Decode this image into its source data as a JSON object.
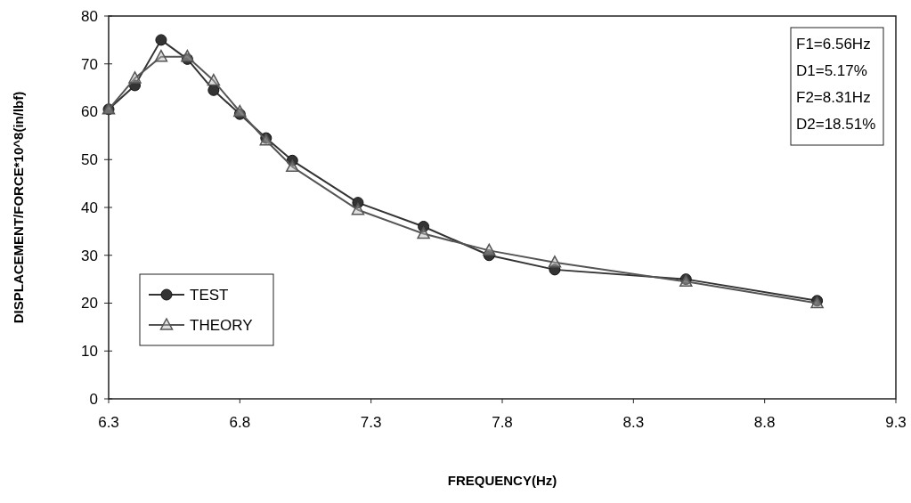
{
  "chart_data": {
    "type": "line",
    "xlabel": "FREQUENCY(Hz)",
    "ylabel": "DISPLACEMENT/FORCE*10^8(in/lbf)",
    "x": [
      6.3,
      6.4,
      6.5,
      6.6,
      6.7,
      6.8,
      6.9,
      7.0,
      7.25,
      7.5,
      7.75,
      8.0,
      8.5,
      9.0
    ],
    "series": [
      {
        "name": "TEST",
        "color": "#333333",
        "marker": "circle",
        "values": [
          60.5,
          65.5,
          75,
          71,
          64.5,
          59.5,
          54.5,
          49.8,
          41,
          36,
          30,
          27,
          25,
          20.5
        ]
      },
      {
        "name": "THEORY",
        "color": "#555555",
        "marker": "triangle",
        "values": [
          60.5,
          67,
          71.5,
          71.5,
          66.5,
          60,
          54,
          48.5,
          39.5,
          34.5,
          31,
          28.5,
          24.5,
          20
        ]
      }
    ],
    "xlim": [
      6.3,
      9.3
    ],
    "xticks": [
      6.3,
      6.8,
      7.3,
      7.8,
      8.3,
      8.8,
      9.3
    ],
    "ylim": [
      0,
      80
    ],
    "yticks": [
      0,
      10,
      20,
      30,
      40,
      50,
      60,
      70,
      80
    ],
    "annotations": [
      "F1=6.56Hz",
      "D1=5.17%",
      "F2=8.31Hz",
      "D2=18.51%"
    ],
    "legend": "bottom left",
    "grid": false,
    "line_style": "solid"
  }
}
